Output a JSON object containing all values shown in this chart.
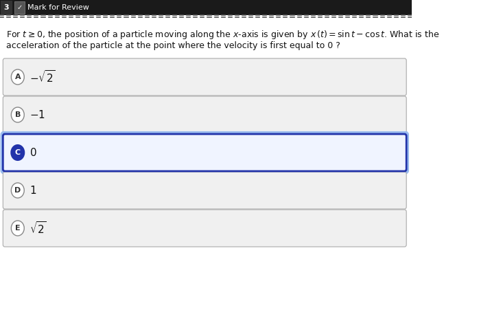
{
  "bg_color": "#ffffff",
  "header_bg": "#1a1a1a",
  "question_num": "3",
  "mark_review_text": "Mark for Review",
  "question_text_line1": "For $t \\geq 0$, the position of a particle moving along the $x$-axis is given by $x\\,(t) = \\sin t - \\cos t$. What is the",
  "question_text_line2": "acceleration of the particle at the point where the velocity is first equal to 0 ?",
  "choices": [
    {
      "label": "A",
      "text": "$-\\sqrt{2}$",
      "selected": false
    },
    {
      "label": "B",
      "text": "$-1$",
      "selected": false
    },
    {
      "label": "C",
      "text": "$0$",
      "selected": true
    },
    {
      "label": "D",
      "text": "$1$",
      "selected": false
    },
    {
      "label": "E",
      "text": "$\\sqrt{2}$",
      "selected": false
    }
  ],
  "choice_box_facecolor_normal": "#f0f0f0",
  "choice_box_facecolor_selected": "#f0f4ff",
  "choice_box_edgecolor_normal": "#aaaaaa",
  "choice_box_edgecolor_selected_outer": "#99bbee",
  "choice_box_edgecolor_selected_inner": "#2233aa",
  "choice_label_bg_normal": "#ffffff",
  "choice_label_bg_selected": "#2233aa",
  "choice_label_text_normal": "#333333",
  "choice_label_text_selected": "#ffffff",
  "choice_label_edge_normal": "#888888",
  "dashed_line_color": "#555555",
  "header_text_color": "#ffffff",
  "question_text_color": "#111111"
}
